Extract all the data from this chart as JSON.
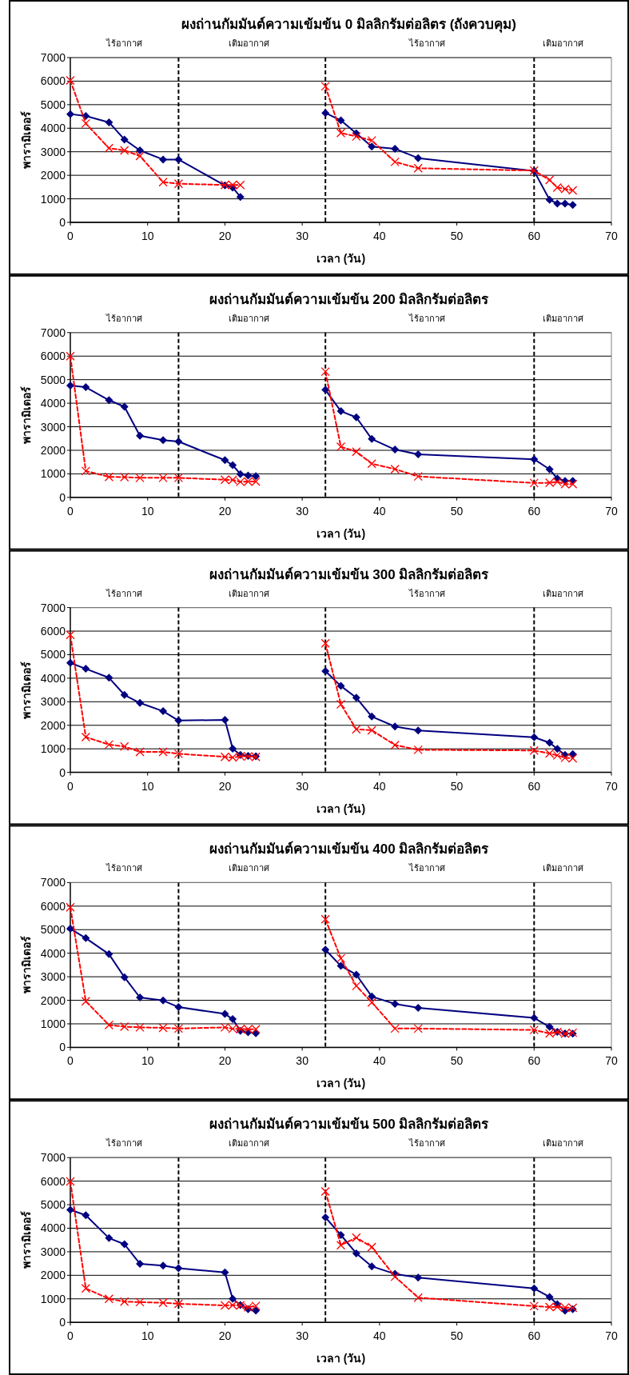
{
  "chart_data": [
    {
      "type": "line",
      "title": "ผงถ่านกัมมันต์ความเข้มข้น 0 มิลลิกรัมต่อลิตร (ถังควบคุม)",
      "xlabel": "เวลา (วัน)",
      "ylabel": "พารามิเตอร์",
      "xlim": [
        0,
        70
      ],
      "xticks": [
        0,
        10,
        20,
        30,
        40,
        50,
        60,
        70
      ],
      "ylim": [
        0,
        7000
      ],
      "yticks": [
        0,
        1000,
        2000,
        3000,
        4000,
        5000,
        6000,
        7000
      ],
      "grid": "y",
      "ref_lines": [
        {
          "axis": "x",
          "value": 14,
          "color": "#000000",
          "line_style": "dashed"
        },
        {
          "axis": "x",
          "value": 33,
          "color": "#000000",
          "line_style": "dashed"
        },
        {
          "axis": "x",
          "value": 60,
          "color": "#000000",
          "line_style": "dashed"
        }
      ],
      "annotations": [
        "ไร้อากาศ",
        "เติมอากาศ",
        "ไร้อากาศ",
        "เติมอากาศ"
      ],
      "series": [
        {
          "color": "#000080",
          "marker": "diamond",
          "line_style": "solid",
          "x": [
            0,
            2,
            5,
            7,
            9,
            12,
            14,
            20,
            21,
            22,
            null,
            33,
            35,
            37,
            39,
            42,
            45,
            60,
            62,
            63,
            64,
            65
          ],
          "values": [
            4600,
            4520,
            4250,
            3520,
            3060,
            2670,
            2670,
            1570,
            1480,
            1080,
            null,
            4650,
            4330,
            3780,
            3220,
            3130,
            2730,
            2180,
            960,
            800,
            800,
            740
          ]
        },
        {
          "color": "#ff0000",
          "marker": "cross",
          "line_style": "dashed",
          "x": [
            0,
            2,
            5,
            7,
            9,
            12,
            14,
            20,
            21,
            22,
            null,
            33,
            35,
            37,
            39,
            42,
            45,
            60,
            62,
            63,
            64,
            65
          ],
          "values": [
            6030,
            4200,
            3150,
            3060,
            2820,
            1710,
            1640,
            1590,
            1590,
            1590,
            null,
            5780,
            3800,
            3650,
            3480,
            2570,
            2300,
            2200,
            1800,
            1480,
            1420,
            1360
          ]
        }
      ]
    },
    {
      "type": "line",
      "title": "ผงถ่านกัมมันต์ความเข้มข้น 200 มิลลิกรัมต่อลิตร",
      "xlabel": "เวลา (วัน)",
      "ylabel": "พารามิเตอร์",
      "xlim": [
        0,
        70
      ],
      "xticks": [
        0,
        10,
        20,
        30,
        40,
        50,
        60,
        70
      ],
      "ylim": [
        0,
        7000
      ],
      "yticks": [
        0,
        1000,
        2000,
        3000,
        4000,
        5000,
        6000,
        7000
      ],
      "grid": "y",
      "ref_lines": [
        {
          "axis": "x",
          "value": 14,
          "color": "#000000",
          "line_style": "dashed"
        },
        {
          "axis": "x",
          "value": 33,
          "color": "#000000",
          "line_style": "dashed"
        },
        {
          "axis": "x",
          "value": 60,
          "color": "#000000",
          "line_style": "dashed"
        }
      ],
      "annotations": [
        "ไร้อากาศ",
        "เติมอากาศ",
        "ไร้อากาศ",
        "เติมอากาศ"
      ],
      "series": [
        {
          "color": "#000080",
          "marker": "diamond",
          "line_style": "solid",
          "x": [
            0,
            2,
            5,
            7,
            9,
            12,
            14,
            20,
            21,
            22,
            23,
            24,
            null,
            33,
            35,
            37,
            39,
            42,
            45,
            60,
            62,
            63,
            64,
            65
          ],
          "values": [
            4750,
            4680,
            4130,
            3850,
            2620,
            2430,
            2370,
            1580,
            1370,
            990,
            930,
            900,
            null,
            4570,
            3660,
            3400,
            2480,
            2030,
            1830,
            1620,
            1190,
            800,
            700,
            700
          ]
        },
        {
          "color": "#ff0000",
          "marker": "cross",
          "line_style": "dashed",
          "x": [
            0,
            2,
            5,
            7,
            9,
            12,
            14,
            20,
            21,
            22,
            23,
            24,
            null,
            33,
            35,
            37,
            39,
            42,
            45,
            60,
            62,
            63,
            64,
            65
          ],
          "values": [
            6000,
            1120,
            870,
            860,
            830,
            830,
            830,
            750,
            740,
            660,
            670,
            670,
            null,
            5340,
            2150,
            1940,
            1430,
            1200,
            890,
            610,
            620,
            660,
            560,
            560
          ]
        }
      ]
    },
    {
      "type": "line",
      "title": "ผงถ่านกัมมันต์ความเข้มข้น 300 มิลลิกรัมต่อลิตร",
      "xlabel": "เวลา (วัน)",
      "ylabel": "พารามิเตอร์",
      "xlim": [
        0,
        70
      ],
      "xticks": [
        0,
        10,
        20,
        30,
        40,
        50,
        60,
        70
      ],
      "ylim": [
        0,
        7000
      ],
      "yticks": [
        0,
        1000,
        2000,
        3000,
        4000,
        5000,
        6000,
        7000
      ],
      "grid": "y",
      "ref_lines": [
        {
          "axis": "x",
          "value": 14,
          "color": "#000000",
          "line_style": "dashed"
        },
        {
          "axis": "x",
          "value": 33,
          "color": "#000000",
          "line_style": "dashed"
        },
        {
          "axis": "x",
          "value": 60,
          "color": "#000000",
          "line_style": "dashed"
        }
      ],
      "annotations": [
        "ไร้อากาศ",
        "เติมอากาศ",
        "ไร้อากาศ",
        "เติมอากาศ"
      ],
      "series": [
        {
          "color": "#000080",
          "marker": "diamond",
          "line_style": "solid",
          "x": [
            0,
            2,
            5,
            7,
            9,
            12,
            14,
            20,
            21,
            22,
            23,
            24,
            null,
            33,
            35,
            37,
            39,
            42,
            45,
            60,
            62,
            63,
            64,
            65
          ],
          "values": [
            4650,
            4400,
            4020,
            3290,
            2950,
            2600,
            2200,
            2230,
            1010,
            740,
            700,
            680,
            null,
            4300,
            3670,
            3170,
            2370,
            1950,
            1780,
            1490,
            1260,
            1000,
            740,
            780
          ]
        },
        {
          "color": "#ff0000",
          "marker": "cross",
          "line_style": "dashed",
          "x": [
            0,
            2,
            5,
            7,
            9,
            12,
            14,
            20,
            21,
            22,
            23,
            24,
            null,
            33,
            35,
            37,
            39,
            42,
            45,
            60,
            62,
            63,
            64,
            65
          ],
          "values": [
            5840,
            1500,
            1180,
            1100,
            870,
            870,
            790,
            660,
            630,
            680,
            680,
            660,
            null,
            5480,
            2890,
            1830,
            1790,
            1160,
            960,
            930,
            800,
            720,
            620,
            600
          ]
        }
      ]
    },
    {
      "type": "line",
      "title": "ผงถ่านกัมมันต์ความเข้มข้น 400 มิลลิกรัมต่อลิตร",
      "xlabel": "เวลา (วัน)",
      "ylabel": "พารามิเตอร์",
      "xlim": [
        0,
        70
      ],
      "xticks": [
        0,
        10,
        20,
        30,
        40,
        50,
        60,
        70
      ],
      "ylim": [
        0,
        7000
      ],
      "yticks": [
        0,
        1000,
        2000,
        3000,
        4000,
        5000,
        6000,
        7000
      ],
      "grid": "y",
      "ref_lines": [
        {
          "axis": "x",
          "value": 14,
          "color": "#000000",
          "line_style": "dashed"
        },
        {
          "axis": "x",
          "value": 33,
          "color": "#000000",
          "line_style": "dashed"
        },
        {
          "axis": "x",
          "value": 60,
          "color": "#000000",
          "line_style": "dashed"
        }
      ],
      "annotations": [
        "ไร้อากาศ",
        "เติมอากาศ",
        "ไร้อากาศ",
        "เติมอากาศ"
      ],
      "series": [
        {
          "color": "#000080",
          "marker": "diamond",
          "line_style": "solid",
          "x": [
            0,
            2,
            5,
            7,
            9,
            12,
            14,
            20,
            21,
            22,
            23,
            24,
            null,
            33,
            35,
            37,
            39,
            42,
            45,
            60,
            62,
            63,
            64,
            65
          ],
          "values": [
            5040,
            4640,
            3960,
            2980,
            2120,
            1990,
            1710,
            1420,
            1200,
            700,
            640,
            600,
            null,
            4150,
            3460,
            3090,
            2160,
            1850,
            1680,
            1250,
            870,
            660,
            590,
            580
          ]
        },
        {
          "color": "#ff0000",
          "marker": "cross",
          "line_style": "dashed",
          "x": [
            0,
            2,
            5,
            7,
            9,
            12,
            14,
            20,
            21,
            22,
            23,
            24,
            null,
            33,
            35,
            37,
            39,
            42,
            45,
            60,
            62,
            63,
            64,
            65
          ],
          "values": [
            5950,
            1960,
            950,
            880,
            850,
            830,
            800,
            850,
            790,
            780,
            770,
            770,
            null,
            5440,
            3780,
            2610,
            1910,
            800,
            800,
            740,
            590,
            650,
            580,
            620
          ]
        }
      ]
    },
    {
      "type": "line",
      "title": "ผงถ่านกัมมันต์ความเข้มข้น 500 มิลลิกรัมต่อลิตร",
      "xlabel": "เวลา (วัน)",
      "ylabel": "พารามิเตอร์",
      "xlim": [
        0,
        70
      ],
      "xticks": [
        0,
        10,
        20,
        30,
        40,
        50,
        60,
        70
      ],
      "ylim": [
        0,
        7000
      ],
      "yticks": [
        0,
        1000,
        2000,
        3000,
        4000,
        5000,
        6000,
        7000
      ],
      "grid": "y",
      "ref_lines": [
        {
          "axis": "x",
          "value": 14,
          "color": "#000000",
          "line_style": "dashed"
        },
        {
          "axis": "x",
          "value": 33,
          "color": "#000000",
          "line_style": "dashed"
        },
        {
          "axis": "x",
          "value": 60,
          "color": "#000000",
          "line_style": "dashed"
        }
      ],
      "annotations": [
        "ไร้อากาศ",
        "เติมอากาศ",
        "ไร้อากาศ",
        "เติมอากาศ"
      ],
      "series": [
        {
          "color": "#000080",
          "marker": "diamond",
          "line_style": "solid",
          "x": [
            0,
            2,
            5,
            7,
            9,
            12,
            14,
            20,
            21,
            22,
            23,
            24,
            null,
            33,
            35,
            37,
            39,
            42,
            45,
            60,
            62,
            63,
            64,
            65
          ],
          "values": [
            4780,
            4550,
            3580,
            3320,
            2490,
            2410,
            2300,
            2120,
            1000,
            740,
            560,
            500,
            null,
            4460,
            3710,
            2930,
            2380,
            2060,
            1900,
            1440,
            1080,
            770,
            500,
            560
          ]
        },
        {
          "color": "#ff0000",
          "marker": "cross",
          "line_style": "dashed",
          "x": [
            0,
            2,
            5,
            7,
            9,
            12,
            14,
            20,
            21,
            22,
            23,
            24,
            null,
            33,
            35,
            37,
            39,
            42,
            45,
            60,
            62,
            63,
            64,
            65
          ],
          "values": [
            5990,
            1440,
            1000,
            880,
            860,
            830,
            790,
            720,
            730,
            720,
            640,
            700,
            null,
            5560,
            3280,
            3600,
            3200,
            1940,
            1050,
            690,
            650,
            660,
            630,
            620
          ]
        }
      ]
    }
  ]
}
